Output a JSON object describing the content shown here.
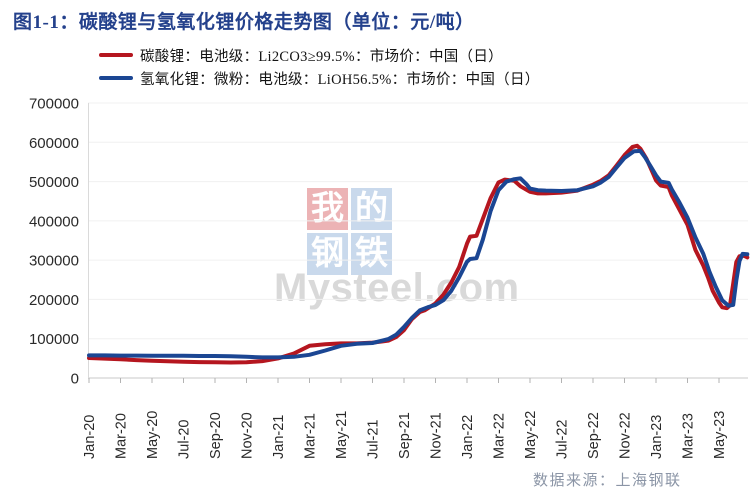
{
  "title": "图1-1：碳酸锂与氢氧化锂价格走势图（单位：元/吨）",
  "legend": [
    {
      "label": "碳酸锂：电池级：Li2CO3≥99.5%：市场价：中国（日）",
      "color": "#b5161f"
    },
    {
      "label": "氢氧化锂：微粉：电池级：LiOH56.5%：市场价：中国（日）",
      "color": "#1b4693"
    }
  ],
  "watermark": {
    "tiles": [
      {
        "char": "我",
        "bg": "#eaa9ab"
      },
      {
        "char": "的",
        "bg": "#c2d4ea"
      },
      {
        "char": "钢",
        "bg": "#c2d4ea"
      },
      {
        "char": "铁",
        "bg": "#c2d4ea"
      }
    ],
    "text": "Mysteel.com"
  },
  "source": "数据来源：上海钢联",
  "colors": {
    "title_navy": "#24418c",
    "series_red": "#b5161f",
    "series_blue": "#1b4693",
    "axis_text": "#2a2a2a",
    "grid": "#f0f0f0",
    "axis_line": "#c8c8c8"
  },
  "chart_data": {
    "type": "line",
    "title": "碳酸锂与氢氧化锂价格走势图",
    "ylabel": "元/吨",
    "ylim": [
      0,
      700000
    ],
    "y_ticks": [
      0,
      100000,
      200000,
      300000,
      400000,
      500000,
      600000,
      700000
    ],
    "x_tick_labels": [
      "Jan-20",
      "Mar-20",
      "May-20",
      "Jul-20",
      "Sep-20",
      "Nov-20",
      "Jan-21",
      "Mar-21",
      "May-21",
      "Jul-21",
      "Sep-21",
      "Nov-21",
      "Jan-22",
      "Mar-22",
      "May-22",
      "Jul-22",
      "Sep-22",
      "Nov-22",
      "Jan-23",
      "Mar-23",
      "May-23"
    ],
    "x_tick_months": [
      0,
      2,
      4,
      6,
      8,
      10,
      12,
      14,
      16,
      18,
      20,
      22,
      24,
      26,
      28,
      30,
      32,
      34,
      36,
      38,
      40
    ],
    "x_axis_note": "months since Jan-2020, data through ~Jun-2023",
    "grid": true,
    "legend_position": "top",
    "series": [
      {
        "name": "碳酸锂：电池级：Li2CO3≥99.5%：市场价：中国（日）",
        "color": "#b5161f",
        "points": [
          [
            0,
            51000
          ],
          [
            1,
            49500
          ],
          [
            2,
            47500
          ],
          [
            3,
            45500
          ],
          [
            4,
            44000
          ],
          [
            5,
            42500
          ],
          [
            6,
            41500
          ],
          [
            7,
            40500
          ],
          [
            8,
            40000
          ],
          [
            9,
            39500
          ],
          [
            10,
            40000
          ],
          [
            11,
            43000
          ],
          [
            12,
            50000
          ],
          [
            13,
            62000
          ],
          [
            14,
            82000
          ],
          [
            15,
            86000
          ],
          [
            16,
            88000
          ],
          [
            17,
            88000
          ],
          [
            18,
            90000
          ],
          [
            19,
            95000
          ],
          [
            19.5,
            104000
          ],
          [
            20,
            122000
          ],
          [
            20.5,
            150000
          ],
          [
            21,
            168000
          ],
          [
            21.3,
            172000
          ],
          [
            22,
            190000
          ],
          [
            22.5,
            212000
          ],
          [
            23,
            243000
          ],
          [
            23.5,
            282000
          ],
          [
            24,
            342000
          ],
          [
            24.2,
            360000
          ],
          [
            24.6,
            362000
          ],
          [
            25,
            405000
          ],
          [
            25.5,
            458000
          ],
          [
            26,
            498000
          ],
          [
            26.4,
            505000
          ],
          [
            27,
            502000
          ],
          [
            27.4,
            488000
          ],
          [
            28,
            474000
          ],
          [
            28.5,
            470000
          ],
          [
            29,
            470000
          ],
          [
            30,
            472000
          ],
          [
            31,
            477000
          ],
          [
            32,
            492000
          ],
          [
            32.5,
            502000
          ],
          [
            33,
            516000
          ],
          [
            33.5,
            541000
          ],
          [
            34,
            567000
          ],
          [
            34.5,
            588000
          ],
          [
            34.8,
            591000
          ],
          [
            35,
            584000
          ],
          [
            35.4,
            558000
          ],
          [
            35.8,
            522000
          ],
          [
            36,
            503000
          ],
          [
            36.3,
            490000
          ],
          [
            36.8,
            486000
          ],
          [
            37,
            465000
          ],
          [
            37.5,
            428000
          ],
          [
            38,
            390000
          ],
          [
            38.5,
            326000
          ],
          [
            39,
            286000
          ],
          [
            39.3,
            256000
          ],
          [
            39.6,
            222000
          ],
          [
            40,
            192000
          ],
          [
            40.2,
            180000
          ],
          [
            40.5,
            178000
          ],
          [
            40.7,
            185000
          ],
          [
            40.9,
            240000
          ],
          [
            41.1,
            295000
          ],
          [
            41.3,
            310000
          ],
          [
            41.6,
            311000
          ],
          [
            41.8,
            307000
          ]
        ]
      },
      {
        "name": "氢氧化锂：微粉：电池级：LiOH56.5%：市场价：中国（日）",
        "color": "#1b4693",
        "points": [
          [
            0,
            57500
          ],
          [
            1,
            57500
          ],
          [
            2,
            57000
          ],
          [
            3,
            57000
          ],
          [
            4,
            56500
          ],
          [
            5,
            56500
          ],
          [
            6,
            56500
          ],
          [
            7,
            56000
          ],
          [
            8,
            56000
          ],
          [
            9,
            55500
          ],
          [
            10,
            54000
          ],
          [
            11,
            52500
          ],
          [
            12,
            52500
          ],
          [
            13,
            54000
          ],
          [
            14,
            59000
          ],
          [
            15,
            70000
          ],
          [
            16,
            82000
          ],
          [
            17,
            87000
          ],
          [
            18,
            89000
          ],
          [
            19,
            99000
          ],
          [
            19.5,
            110000
          ],
          [
            20,
            130000
          ],
          [
            20.5,
            153000
          ],
          [
            21,
            172000
          ],
          [
            21.5,
            180000
          ],
          [
            22,
            186000
          ],
          [
            22.5,
            198000
          ],
          [
            23,
            222000
          ],
          [
            23.5,
            256000
          ],
          [
            24,
            296000
          ],
          [
            24.2,
            303000
          ],
          [
            24.6,
            305000
          ],
          [
            25,
            352000
          ],
          [
            25.5,
            425000
          ],
          [
            26,
            478000
          ],
          [
            26.5,
            500000
          ],
          [
            27,
            506000
          ],
          [
            27.4,
            508000
          ],
          [
            27.8,
            492000
          ],
          [
            28,
            482000
          ],
          [
            28.5,
            478000
          ],
          [
            29,
            477000
          ],
          [
            30,
            476000
          ],
          [
            31,
            478000
          ],
          [
            32,
            488000
          ],
          [
            32.5,
            498000
          ],
          [
            33,
            512000
          ],
          [
            33.5,
            536000
          ],
          [
            34,
            560000
          ],
          [
            34.6,
            577000
          ],
          [
            35,
            578000
          ],
          [
            35.3,
            562000
          ],
          [
            35.7,
            536000
          ],
          [
            36,
            516000
          ],
          [
            36.3,
            500000
          ],
          [
            36.8,
            497000
          ],
          [
            37,
            480000
          ],
          [
            37.5,
            446000
          ],
          [
            38,
            408000
          ],
          [
            38.5,
            358000
          ],
          [
            39,
            316000
          ],
          [
            39.4,
            270000
          ],
          [
            39.8,
            232000
          ],
          [
            40.2,
            198000
          ],
          [
            40.6,
            184000
          ],
          [
            40.9,
            186000
          ],
          [
            41.1,
            248000
          ],
          [
            41.3,
            298000
          ],
          [
            41.5,
            316000
          ],
          [
            41.8,
            315000
          ]
        ]
      }
    ]
  }
}
